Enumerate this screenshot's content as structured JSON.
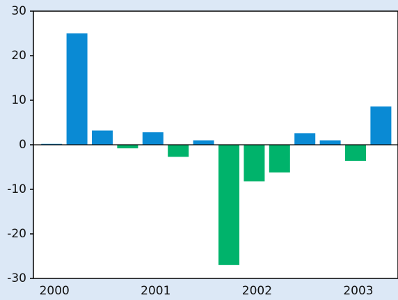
{
  "chart_data": {
    "type": "bar",
    "categories": [
      "2000",
      null,
      null,
      null,
      "2001",
      null,
      null,
      null,
      "2002",
      null,
      null,
      null,
      "2003",
      null
    ],
    "values": [
      0.2,
      25,
      3.2,
      -0.8,
      2.8,
      -2.7,
      1.0,
      -27,
      -8.2,
      -6.2,
      2.6,
      1.0,
      -3.6,
      8.6
    ],
    "positive_color": "#0a8ad4",
    "negative_color": "#00b36b",
    "ylim": [
      -30,
      30
    ],
    "yticks": [
      -30,
      -20,
      -10,
      0,
      10,
      20,
      30
    ],
    "grid": false
  }
}
